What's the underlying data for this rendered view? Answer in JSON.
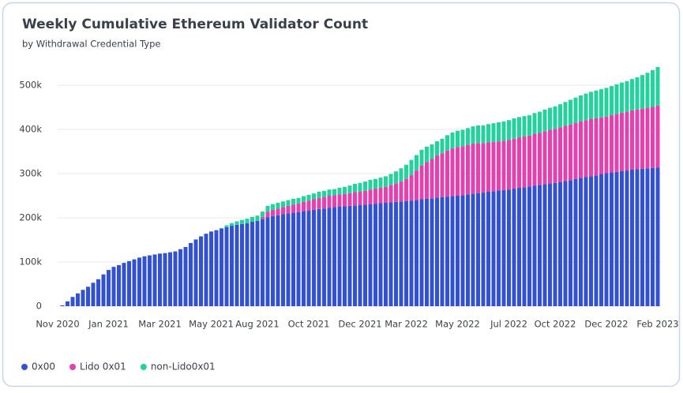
{
  "chart_data": {
    "type": "stacked_bar",
    "title": "Weekly Cumulative Ethereum Validator Count",
    "subtitle": "by Withdrawal Credential Type",
    "categories": [
      "Nov 2020",
      null,
      null,
      null,
      null,
      null,
      null,
      null,
      null,
      "Jan 2021",
      null,
      null,
      null,
      null,
      null,
      null,
      null,
      null,
      null,
      "Mar 2021",
      null,
      null,
      null,
      null,
      null,
      null,
      null,
      null,
      null,
      "May 2021",
      null,
      null,
      null,
      null,
      null,
      null,
      null,
      null,
      "Aug 2021",
      null,
      null,
      null,
      null,
      null,
      null,
      null,
      null,
      null,
      "Oct 2021",
      null,
      null,
      null,
      null,
      null,
      null,
      null,
      null,
      null,
      "Dec 2021",
      null,
      null,
      null,
      null,
      null,
      null,
      null,
      null,
      "Mar 2022",
      null,
      null,
      null,
      null,
      null,
      null,
      null,
      null,
      null,
      "May 2022",
      null,
      null,
      null,
      null,
      null,
      null,
      null,
      null,
      null,
      "Jul 2022",
      null,
      null,
      null,
      null,
      null,
      null,
      null,
      null,
      "Oct 2022",
      null,
      null,
      null,
      null,
      null,
      null,
      null,
      null,
      null,
      "Dec 2022",
      null,
      null,
      null,
      null,
      null,
      null,
      null,
      null,
      null,
      "Feb 2023"
    ],
    "series": [
      {
        "name": "0x00",
        "color": "#3351d3",
        "values": [
          2000,
          11000,
          21000,
          29000,
          37000,
          44000,
          53000,
          61000,
          72000,
          82000,
          89000,
          93000,
          98000,
          102000,
          106000,
          110000,
          113000,
          115000,
          117000,
          119000,
          120000,
          122000,
          124000,
          129000,
          134000,
          143000,
          151000,
          158000,
          164000,
          169000,
          172000,
          175000,
          179000,
          182000,
          184000,
          186000,
          188000,
          191000,
          193000,
          197000,
          201000,
          204000,
          206000,
          208000,
          210000,
          212000,
          213000,
          215000,
          216000,
          218000,
          220000,
          221000,
          223000,
          224000,
          225000,
          226000,
          227000,
          228000,
          229000,
          230000,
          231000,
          232000,
          233000,
          234000,
          235000,
          236000,
          237000,
          238000,
          239000,
          240000,
          242000,
          243000,
          244000,
          246000,
          247000,
          248000,
          249000,
          250000,
          251000,
          253000,
          255000,
          256000,
          257000,
          259000,
          260000,
          262000,
          263000,
          264000,
          266000,
          268000,
          269000,
          271000,
          273000,
          274000,
          276000,
          278000,
          279000,
          281000,
          283000,
          285000,
          288000,
          290000,
          292000,
          294000,
          296000,
          299000,
          301000,
          303000,
          304000,
          306000,
          307000,
          309000,
          310000,
          311000,
          312000,
          313000,
          314000
        ]
      },
      {
        "name": "Lido 0x01",
        "color": "#e440b0",
        "values": [
          0,
          0,
          0,
          0,
          0,
          0,
          0,
          0,
          0,
          0,
          0,
          0,
          0,
          0,
          0,
          0,
          0,
          0,
          0,
          0,
          0,
          0,
          0,
          0,
          0,
          0,
          0,
          0,
          0,
          0,
          0,
          0,
          0,
          0,
          0,
          0,
          0,
          0,
          0,
          5000,
          13000,
          14000,
          15000,
          16000,
          17000,
          18000,
          19000,
          21000,
          23000,
          24000,
          25000,
          26000,
          27000,
          27000,
          28000,
          28000,
          29000,
          30000,
          30000,
          31000,
          33000,
          34000,
          35000,
          36000,
          39000,
          42000,
          45000,
          50000,
          58000,
          67000,
          76000,
          83000,
          89000,
          95000,
          99000,
          104000,
          108000,
          110000,
          111000,
          112000,
          113000,
          113000,
          112000,
          112000,
          112000,
          111000,
          111000,
          112000,
          113000,
          114000,
          115000,
          115000,
          117000,
          118000,
          120000,
          121000,
          122000,
          124000,
          125000,
          126000,
          127000,
          128000,
          129000,
          130000,
          129000,
          128000,
          128000,
          129000,
          131000,
          132000,
          133000,
          134000,
          135000,
          136000,
          137000,
          138000,
          140000
        ]
      },
      {
        "name": "non-Lido0x01",
        "color": "#22d39b",
        "values": [
          0,
          0,
          0,
          0,
          0,
          0,
          0,
          0,
          0,
          0,
          0,
          0,
          0,
          0,
          0,
          0,
          0,
          0,
          0,
          0,
          0,
          0,
          0,
          0,
          0,
          0,
          0,
          0,
          0,
          0,
          0,
          2000,
          4000,
          6000,
          8000,
          9000,
          10000,
          11000,
          12000,
          12000,
          13000,
          13000,
          13000,
          13000,
          13000,
          13000,
          13000,
          13000,
          13000,
          13000,
          14000,
          14000,
          14000,
          14000,
          15000,
          16000,
          17000,
          19000,
          20000,
          21000,
          22000,
          22000,
          23000,
          24000,
          25000,
          27000,
          30000,
          32000,
          34000,
          35000,
          36000,
          35000,
          33000,
          32000,
          33000,
          35000,
          36000,
          37000,
          37000,
          38000,
          39000,
          40000,
          40000,
          41000,
          42000,
          43000,
          44000,
          45000,
          46000,
          46000,
          46000,
          46000,
          47000,
          48000,
          49000,
          50000,
          51000,
          52000,
          54000,
          56000,
          57000,
          59000,
          60000,
          61000,
          63000,
          64000,
          65000,
          66000,
          67000,
          68000,
          69000,
          71000,
          73000,
          76000,
          79000,
          83000,
          87000
        ]
      }
    ],
    "ylim": [
      0,
      560000
    ],
    "yticks": [
      {
        "value": 0,
        "label": "0"
      },
      {
        "value": 100000,
        "label": "100k"
      },
      {
        "value": 200000,
        "label": "200k"
      },
      {
        "value": 300000,
        "label": "300k"
      },
      {
        "value": 400000,
        "label": "400k"
      },
      {
        "value": 500000,
        "label": "500k"
      }
    ],
    "grid": true,
    "legend": "bottom-left"
  }
}
